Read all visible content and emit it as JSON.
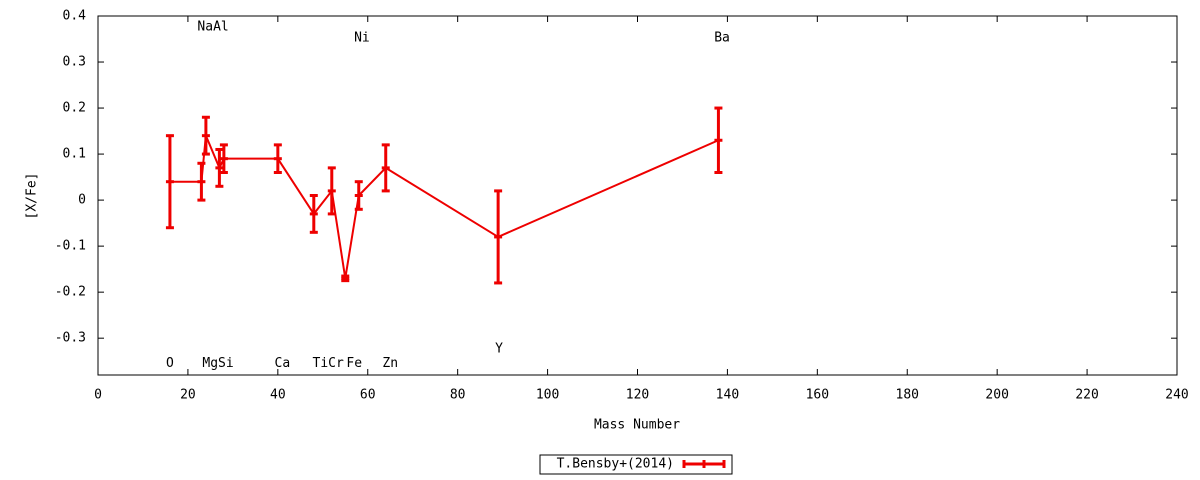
{
  "chart_data": {
    "type": "errorbar-line",
    "xlabel": "Mass Number",
    "ylabel": "[X/Fe]",
    "xlim": [
      0,
      240
    ],
    "xticks": [
      0,
      20,
      40,
      60,
      80,
      100,
      120,
      140,
      160,
      180,
      200,
      220,
      240
    ],
    "ylim": [
      -0.38,
      0.4
    ],
    "yticks": [
      0.4,
      0.3,
      0.2,
      0.1,
      0,
      -0.1,
      -0.2,
      -0.3
    ],
    "legend": "bottom-center",
    "series": [
      {
        "name": "T.Bensby+(2014)",
        "color": "#ee0000",
        "x": [
          16,
          23,
          24,
          27,
          28,
          40,
          48,
          52,
          55,
          58,
          64,
          89,
          138
        ],
        "values": [
          0.04,
          0.04,
          0.14,
          0.07,
          0.09,
          0.09,
          -0.03,
          0.02,
          -0.17,
          0.01,
          0.07,
          -0.08,
          0.13
        ],
        "errors": [
          0.1,
          0.04,
          0.04,
          0.04,
          0.03,
          0.03,
          0.04,
          0.05,
          0.005,
          0.03,
          0.05,
          0.1,
          0.07
        ]
      }
    ],
    "annotations": [
      {
        "text": "O",
        "x": 16,
        "y": -0.355
      },
      {
        "text": "NaAl",
        "x": 25.6,
        "y": 0.376
      },
      {
        "text": "MgSi",
        "x": 26.7,
        "y": -0.355
      },
      {
        "text": "Ca",
        "x": 41,
        "y": -0.355
      },
      {
        "text": "TiCr",
        "x": 51.2,
        "y": -0.355
      },
      {
        "text": "Fe",
        "x": 57,
        "y": -0.355
      },
      {
        "text": "Ni",
        "x": 58.7,
        "y": 0.352
      },
      {
        "text": "Zn",
        "x": 65,
        "y": -0.355
      },
      {
        "text": "Y",
        "x": 89.2,
        "y": -0.324
      },
      {
        "text": "Ba",
        "x": 138.8,
        "y": 0.352
      }
    ]
  }
}
